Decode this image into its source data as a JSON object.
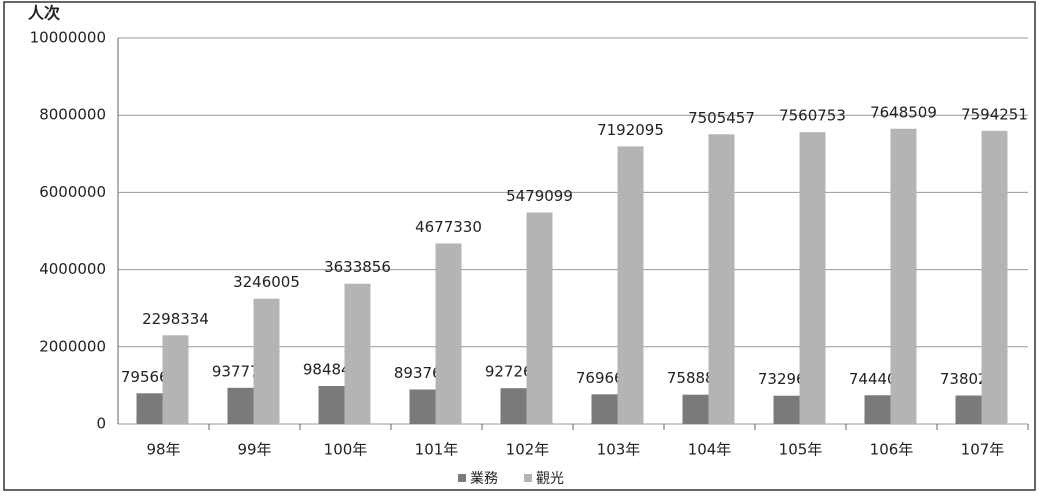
{
  "chart_data": {
    "type": "bar",
    "y_label": "人次",
    "categories": [
      "98年",
      "99年",
      "100年",
      "101年",
      "102年",
      "103年",
      "104年",
      "105年",
      "106年",
      "107年"
    ],
    "series": [
      {
        "name": "業務",
        "color": "#7a7a7a",
        "values": [
          795669,
          937777,
          984845,
          893767,
          927262,
          769665,
          758889,
          732968,
          744402,
          738027
        ]
      },
      {
        "name": "觀光",
        "color": "#b4b4b4",
        "values": [
          2298334,
          3246005,
          3633856,
          4677330,
          5479099,
          7192095,
          7505457,
          7560753,
          7648509,
          7594251
        ]
      }
    ],
    "ylim": [
      0,
      10000000
    ],
    "yticks": [
      0,
      2000000,
      4000000,
      6000000,
      8000000,
      10000000
    ],
    "grid": true
  }
}
